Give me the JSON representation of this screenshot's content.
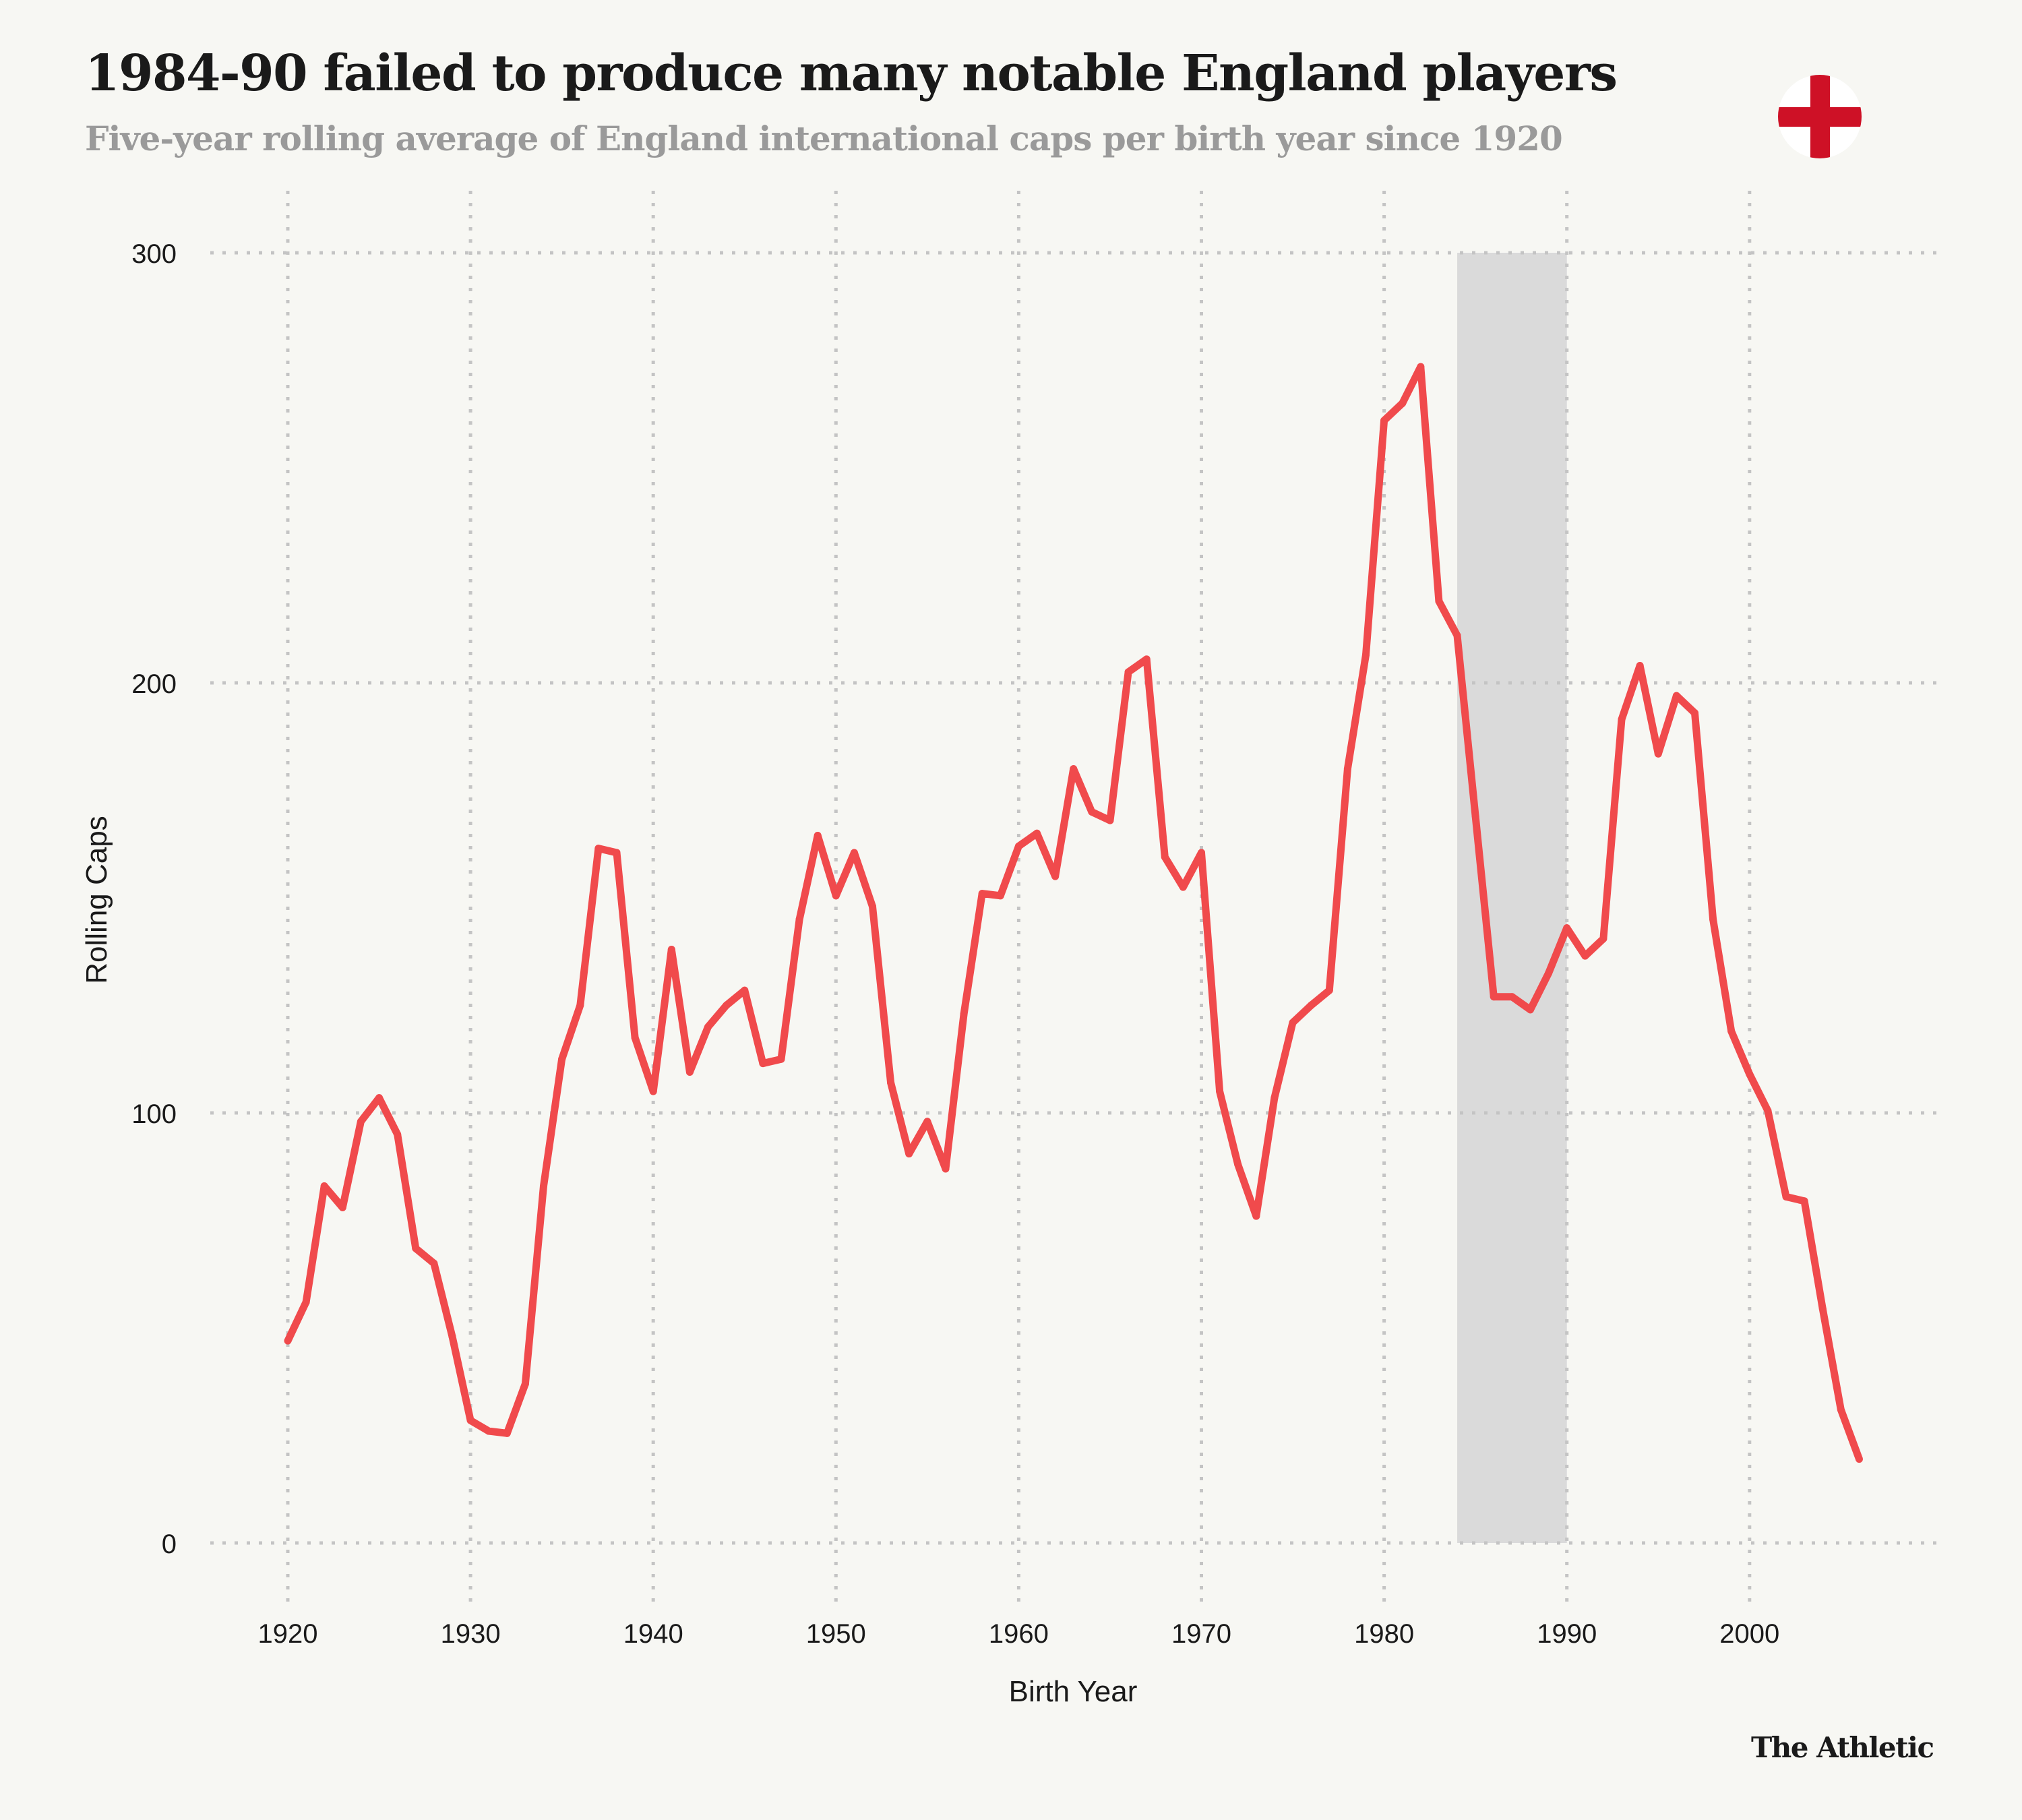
{
  "header": {
    "title": "1984-90 failed to produce many notable England players",
    "subtitle": "Five-year rolling average of England international caps per birth year since 1920",
    "flag_icon": "england-flag-icon"
  },
  "colors": {
    "background": "#F7F7F3",
    "line": "#F04A4C",
    "highlight_band": "#DADADA",
    "grid": "#C4C4C4",
    "text": "#1A1A1A",
    "subtitle": "#9A9A9A",
    "flag_red": "#CE1126",
    "flag_white": "#FFFFFF"
  },
  "branding": {
    "logo_text": "The Athletic"
  },
  "chart_data": {
    "type": "line",
    "title": "1984-90 failed to produce many notable England players",
    "subtitle": "Five-year rolling average of England international caps per birth year since 1920",
    "xlabel": "Birth Year",
    "ylabel": "Rolling Caps",
    "xlim": [
      1920,
      2010
    ],
    "ylim": [
      0,
      300
    ],
    "x_ticks": [
      1920,
      1930,
      1940,
      1950,
      1960,
      1970,
      1980,
      1990,
      2000
    ],
    "y_ticks": [
      0,
      100,
      200,
      300
    ],
    "grid": true,
    "grid_style": "dotted",
    "legend": "none",
    "highlight_band": {
      "x_start": 1984,
      "x_end": 1990,
      "label": "1984-90"
    },
    "series": [
      {
        "name": "Rolling Caps",
        "x": [
          1920,
          1921,
          1922,
          1923,
          1924,
          1925,
          1926,
          1927,
          1928,
          1929,
          1930,
          1931,
          1932,
          1933,
          1934,
          1935,
          1936,
          1937,
          1938,
          1939,
          1940,
          1941,
          1942,
          1943,
          1944,
          1945,
          1946,
          1947,
          1948,
          1949,
          1950,
          1951,
          1952,
          1953,
          1954,
          1955,
          1956,
          1957,
          1958,
          1959,
          1960,
          1961,
          1962,
          1963,
          1964,
          1965,
          1966,
          1967,
          1968,
          1969,
          1970,
          1971,
          1972,
          1973,
          1974,
          1975,
          1976,
          1977,
          1978,
          1979,
          1980,
          1981,
          1982,
          1983,
          1984,
          1985,
          1986,
          1987,
          1988,
          1989,
          1990,
          1991,
          1992,
          1993,
          1994,
          1995,
          1996,
          1997,
          1998,
          1999,
          2000,
          2001,
          2002,
          2003,
          2004,
          2005,
          2006
        ],
        "values": [
          47,
          56,
          83,
          78,
          98,
          103.5,
          95,
          68.5,
          65,
          48,
          28.5,
          26,
          25.5,
          37,
          83,
          112.5,
          125,
          161.5,
          160.5,
          117.5,
          105,
          138,
          109.5,
          120,
          125,
          128.5,
          111.5,
          112.5,
          145,
          164.5,
          150.5,
          160.5,
          148,
          107,
          90.5,
          98,
          87,
          123,
          151,
          150.5,
          162,
          165,
          155,
          180,
          170,
          168,
          202.5,
          205.5,
          159.5,
          152.5,
          160.5,
          105,
          88,
          76,
          103.5,
          121,
          125,
          128.5,
          180,
          206.5,
          261,
          265,
          273.5,
          219,
          211,
          169,
          127,
          127,
          124,
          132.5,
          143,
          136.5,
          140.5,
          191.5,
          204,
          183.5,
          197,
          193,
          145,
          119,
          109,
          100.5,
          80.5,
          79.5,
          54.5,
          31,
          19.5
        ]
      }
    ]
  }
}
